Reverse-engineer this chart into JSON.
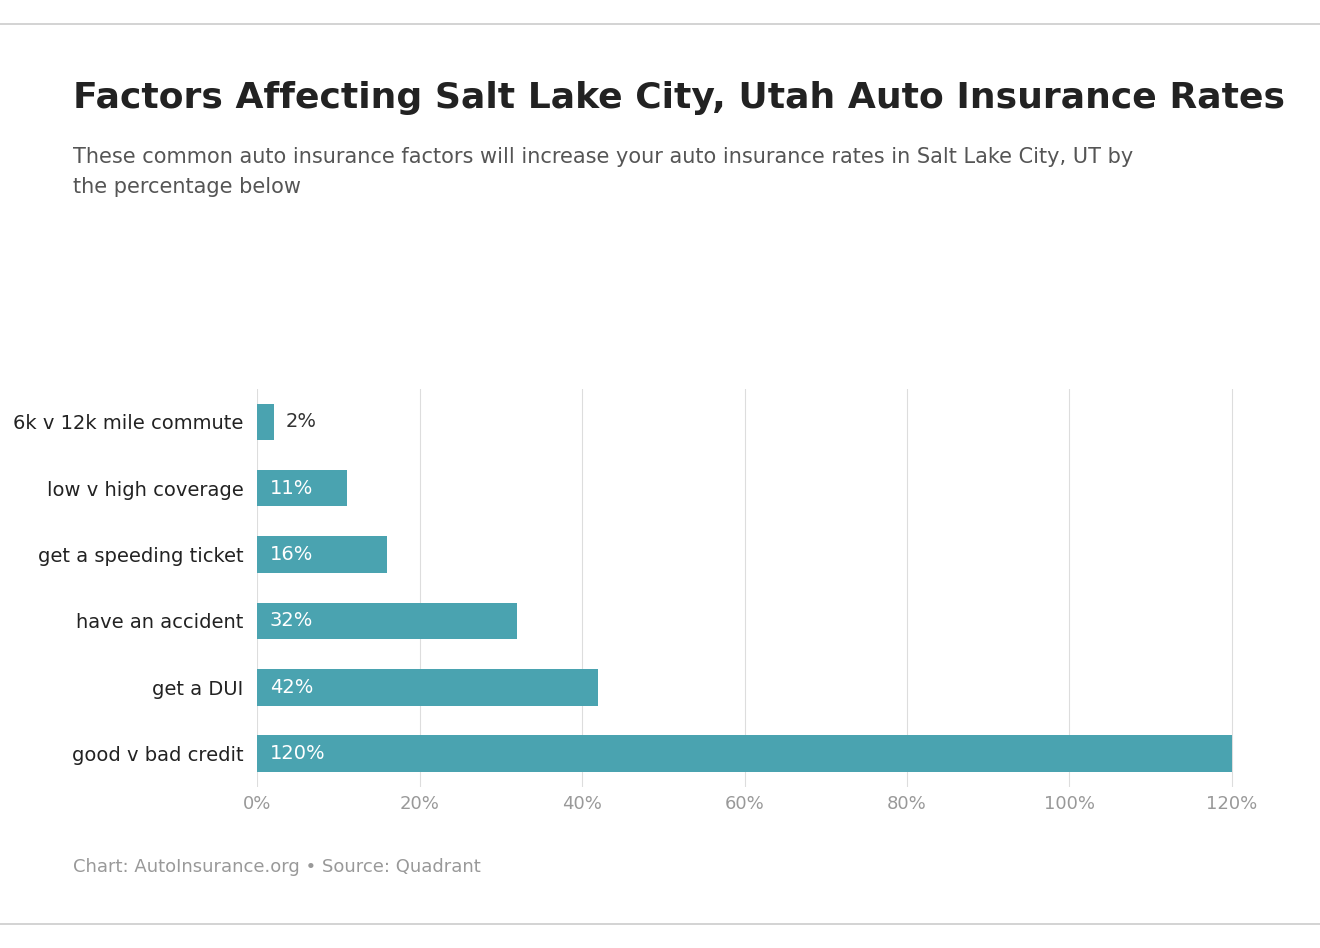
{
  "title": "Factors Affecting Salt Lake City, Utah Auto Insurance Rates",
  "subtitle": "These common auto insurance factors will increase your auto insurance rates in Salt Lake City, UT by\nthe percentage below",
  "categories": [
    "good v bad credit",
    "get a DUI",
    "have an accident",
    "get a speeding ticket",
    "low v high coverage",
    "6k v 12k mile commute"
  ],
  "values": [
    120,
    42,
    32,
    16,
    11,
    2
  ],
  "bar_color": "#4aa3b0",
  "label_color": "#ffffff",
  "label_color_outside": "#333333",
  "background_color": "#ffffff",
  "title_color": "#222222",
  "subtitle_color": "#555555",
  "footer_color": "#999999",
  "footer_text": "Chart: AutoInsurance.org • Source: Quadrant",
  "xlim": [
    0,
    126
  ],
  "title_fontsize": 26,
  "subtitle_fontsize": 15,
  "category_fontsize": 14,
  "value_fontsize": 14,
  "tick_fontsize": 13,
  "footer_fontsize": 13,
  "grid_color": "#dddddd",
  "border_color": "#cccccc"
}
